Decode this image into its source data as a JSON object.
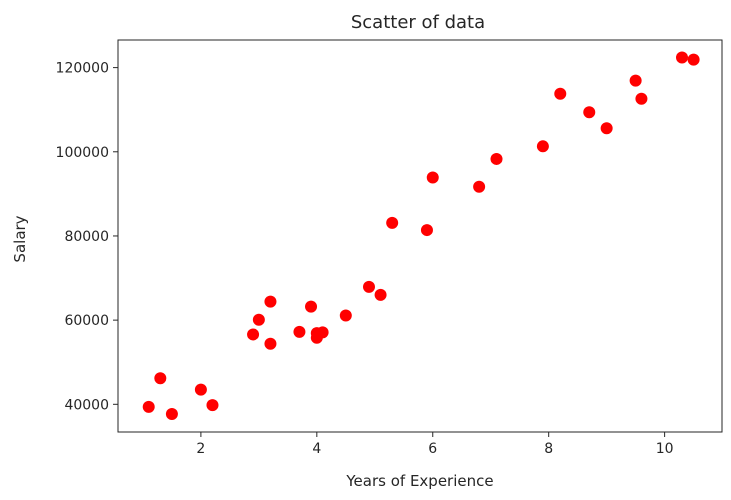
{
  "chart_data": {
    "type": "scatter",
    "title": "Scatter of data",
    "xlabel": "Years of Experience",
    "ylabel": "Salary",
    "xlim": [
      0.57,
      10.99
    ],
    "ylim": [
      33420,
      126560
    ],
    "xticks": [
      2,
      4,
      6,
      8,
      10
    ],
    "yticks": [
      40000,
      60000,
      80000,
      100000,
      120000
    ],
    "grid": false,
    "legend": "none",
    "marker_color": "#ff0000",
    "series": [
      {
        "x": [
          1.1,
          1.3,
          1.5,
          2.0,
          2.2,
          2.9,
          3.0,
          3.2,
          3.2,
          3.7,
          3.9,
          4.0,
          4.0,
          4.1,
          4.5,
          4.9,
          5.1,
          5.3,
          5.9,
          6.0,
          6.8,
          7.1,
          7.9,
          8.2,
          8.7,
          9.0,
          9.5,
          9.6,
          10.3,
          10.5
        ],
        "y": [
          39400,
          46200,
          37700,
          43500,
          39800,
          56600,
          60100,
          54400,
          64400,
          57200,
          63200,
          55800,
          56900,
          57100,
          61100,
          67900,
          66000,
          83100,
          81400,
          93900,
          91700,
          98300,
          101300,
          113800,
          109400,
          105600,
          116900,
          112600,
          122400,
          121900
        ]
      }
    ]
  }
}
